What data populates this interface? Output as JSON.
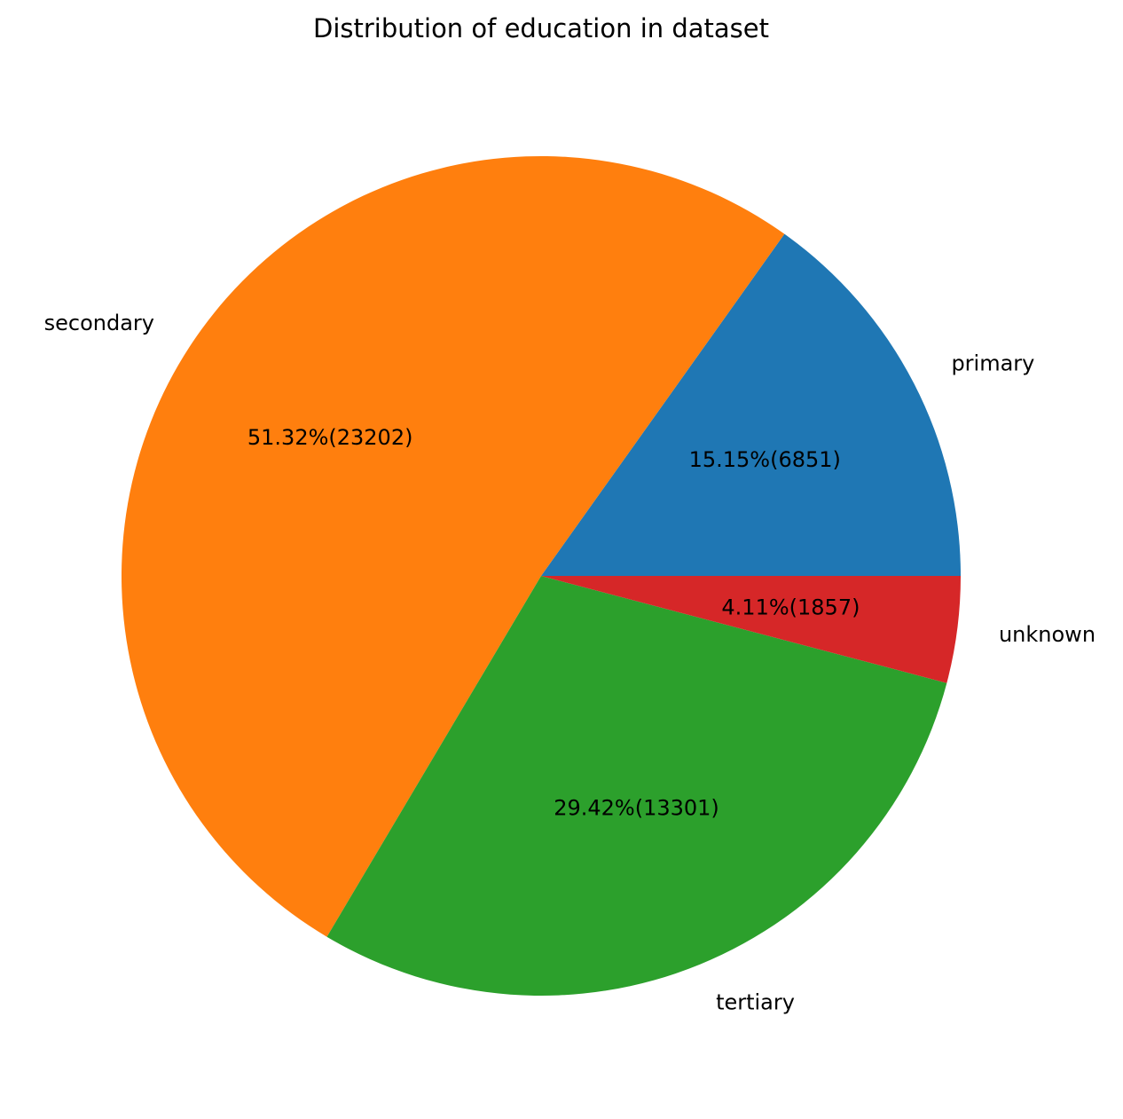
{
  "chart_data": {
    "type": "pie",
    "title": "Distribution of education in dataset",
    "slices": [
      {
        "label": "primary",
        "value": 6851,
        "pct_text": "15.15%(6851)",
        "color": "#1f77b4"
      },
      {
        "label": "secondary",
        "value": 23202,
        "pct_text": "51.32%(23202)",
        "color": "#ff7f0e"
      },
      {
        "label": "tertiary",
        "value": 13301,
        "pct_text": "29.42%(13301)",
        "color": "#2ca02c"
      },
      {
        "label": "unknown",
        "value": 1857,
        "pct_text": "4.11%(1857)",
        "color": "#d62728"
      }
    ]
  }
}
